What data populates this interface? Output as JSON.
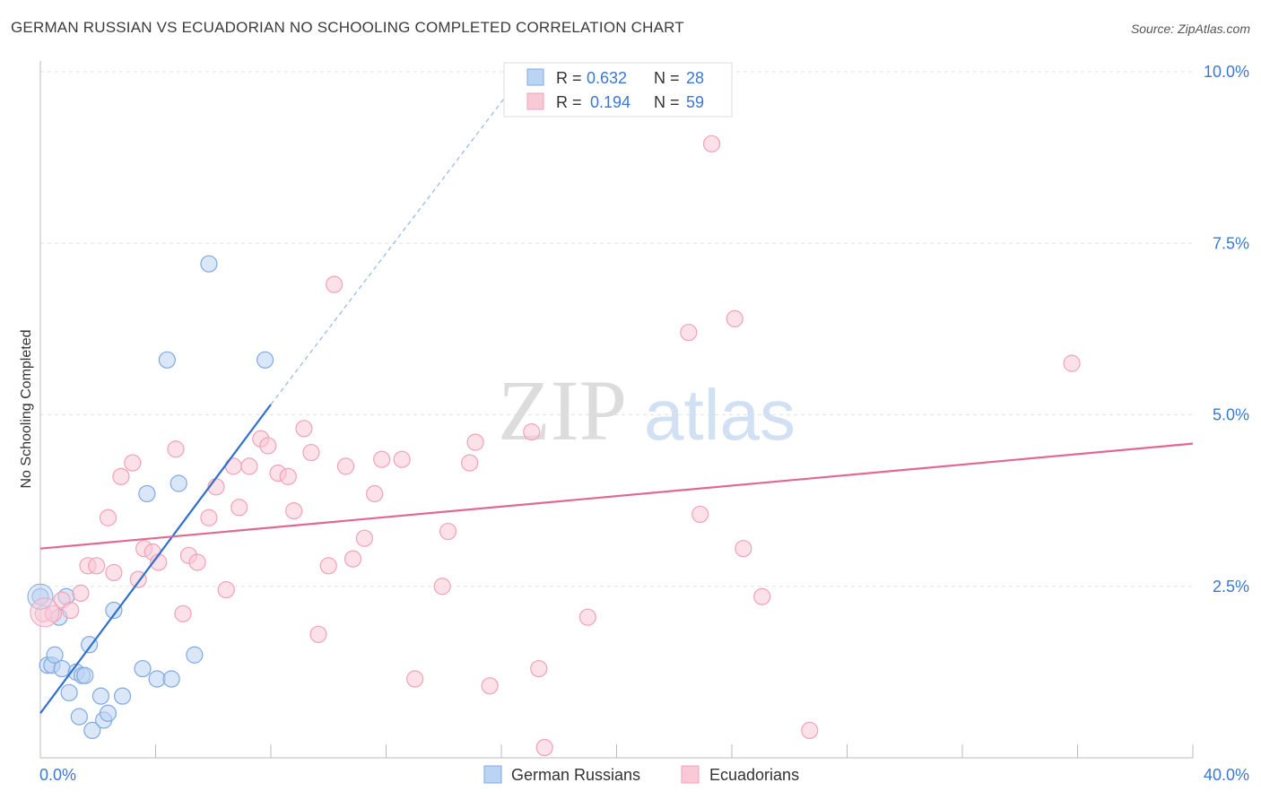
{
  "header": {
    "title": "GERMAN RUSSIAN VS ECUADORIAN NO SCHOOLING COMPLETED CORRELATION CHART",
    "source": "Source: ZipAtlas.com"
  },
  "watermark": {
    "part1": "ZIP",
    "part2": "atlas"
  },
  "chart_data": {
    "type": "scatter",
    "title": "GERMAN RUSSIAN VS ECUADORIAN NO SCHOOLING COMPLETED CORRELATION CHART",
    "xlabel": "",
    "ylabel": "No Schooling Completed",
    "xlim": [
      0,
      40
    ],
    "ylim": [
      0,
      10
    ],
    "x_tick_labels": [
      {
        "value": 0,
        "label": "0.0%"
      },
      {
        "value": 40,
        "label": "40.0%"
      }
    ],
    "y_tick_labels": [
      {
        "value": 2.5,
        "label": "2.5%"
      },
      {
        "value": 5,
        "label": "5.0%"
      },
      {
        "value": 7.5,
        "label": "7.5%"
      },
      {
        "value": 10,
        "label": "10.0%"
      }
    ],
    "grid": true,
    "legend_position": "top-center",
    "stats": [
      {
        "r_label": "R =",
        "r_value": "0.632",
        "n_label": "N =",
        "n_value": "28"
      },
      {
        "r_label": "R =",
        "r_value": "0.194",
        "n_label": "N =",
        "n_value": "59"
      }
    ],
    "series": [
      {
        "name": "German Russians",
        "color": "#7fa9e2",
        "line_color": "#2f6fcf",
        "trend": {
          "x0": 0,
          "y0": 0.65,
          "x1": 8.0,
          "y1": 5.15,
          "dash_to_x": 16.8,
          "dash_to_y": 10.0
        },
        "points": [
          [
            0.0,
            2.35
          ],
          [
            0.25,
            1.35
          ],
          [
            0.4,
            1.35
          ],
          [
            0.5,
            1.5
          ],
          [
            0.65,
            2.05
          ],
          [
            0.75,
            1.3
          ],
          [
            0.9,
            2.35
          ],
          [
            1.0,
            0.95
          ],
          [
            1.25,
            1.25
          ],
          [
            1.35,
            0.6
          ],
          [
            1.45,
            1.2
          ],
          [
            1.55,
            1.2
          ],
          [
            1.7,
            1.65
          ],
          [
            1.8,
            0.4
          ],
          [
            2.1,
            0.9
          ],
          [
            2.2,
            0.55
          ],
          [
            2.35,
            0.65
          ],
          [
            2.55,
            2.15
          ],
          [
            2.85,
            0.9
          ],
          [
            3.55,
            1.3
          ],
          [
            3.7,
            3.85
          ],
          [
            4.05,
            1.15
          ],
          [
            4.4,
            5.8
          ],
          [
            4.55,
            1.15
          ],
          [
            4.8,
            4.0
          ],
          [
            5.35,
            1.5
          ],
          [
            5.85,
            7.2
          ],
          [
            7.8,
            5.8
          ]
        ]
      },
      {
        "name": "Ecuadorians",
        "color": "#f0a2ba",
        "line_color": "#e06891",
        "trend": {
          "x0": 0,
          "y0": 3.05,
          "x1": 40,
          "y1": 4.58
        },
        "points": [
          [
            0.1,
            2.1
          ],
          [
            0.45,
            2.1
          ],
          [
            0.75,
            2.3
          ],
          [
            1.05,
            2.15
          ],
          [
            1.4,
            2.4
          ],
          [
            1.65,
            2.8
          ],
          [
            1.95,
            2.8
          ],
          [
            2.35,
            3.5
          ],
          [
            2.55,
            2.7
          ],
          [
            2.8,
            4.1
          ],
          [
            3.2,
            4.3
          ],
          [
            3.4,
            2.6
          ],
          [
            3.6,
            3.05
          ],
          [
            3.9,
            3.0
          ],
          [
            4.1,
            2.85
          ],
          [
            4.7,
            4.5
          ],
          [
            4.95,
            2.1
          ],
          [
            5.15,
            2.95
          ],
          [
            5.45,
            2.85
          ],
          [
            5.85,
            3.5
          ],
          [
            6.1,
            3.95
          ],
          [
            6.45,
            2.45
          ],
          [
            6.7,
            4.25
          ],
          [
            6.9,
            3.65
          ],
          [
            7.25,
            4.25
          ],
          [
            7.65,
            4.65
          ],
          [
            7.9,
            4.55
          ],
          [
            8.25,
            4.15
          ],
          [
            8.6,
            4.1
          ],
          [
            8.8,
            3.6
          ],
          [
            9.15,
            4.8
          ],
          [
            9.4,
            4.45
          ],
          [
            9.65,
            1.8
          ],
          [
            10.0,
            2.8
          ],
          [
            10.2,
            6.9
          ],
          [
            10.6,
            4.25
          ],
          [
            10.85,
            2.9
          ],
          [
            11.25,
            3.2
          ],
          [
            11.6,
            3.85
          ],
          [
            11.85,
            4.35
          ],
          [
            12.55,
            4.35
          ],
          [
            13.0,
            1.15
          ],
          [
            13.95,
            2.5
          ],
          [
            14.15,
            3.3
          ],
          [
            14.9,
            4.3
          ],
          [
            15.1,
            4.6
          ],
          [
            15.6,
            1.05
          ],
          [
            17.05,
            4.75
          ],
          [
            17.3,
            1.3
          ],
          [
            17.5,
            0.15
          ],
          [
            19.0,
            2.05
          ],
          [
            22.5,
            6.2
          ],
          [
            22.9,
            3.55
          ],
          [
            23.3,
            8.95
          ],
          [
            24.1,
            6.4
          ],
          [
            24.4,
            3.05
          ],
          [
            25.05,
            2.35
          ],
          [
            26.7,
            0.4
          ],
          [
            35.8,
            5.75
          ]
        ]
      }
    ]
  }
}
